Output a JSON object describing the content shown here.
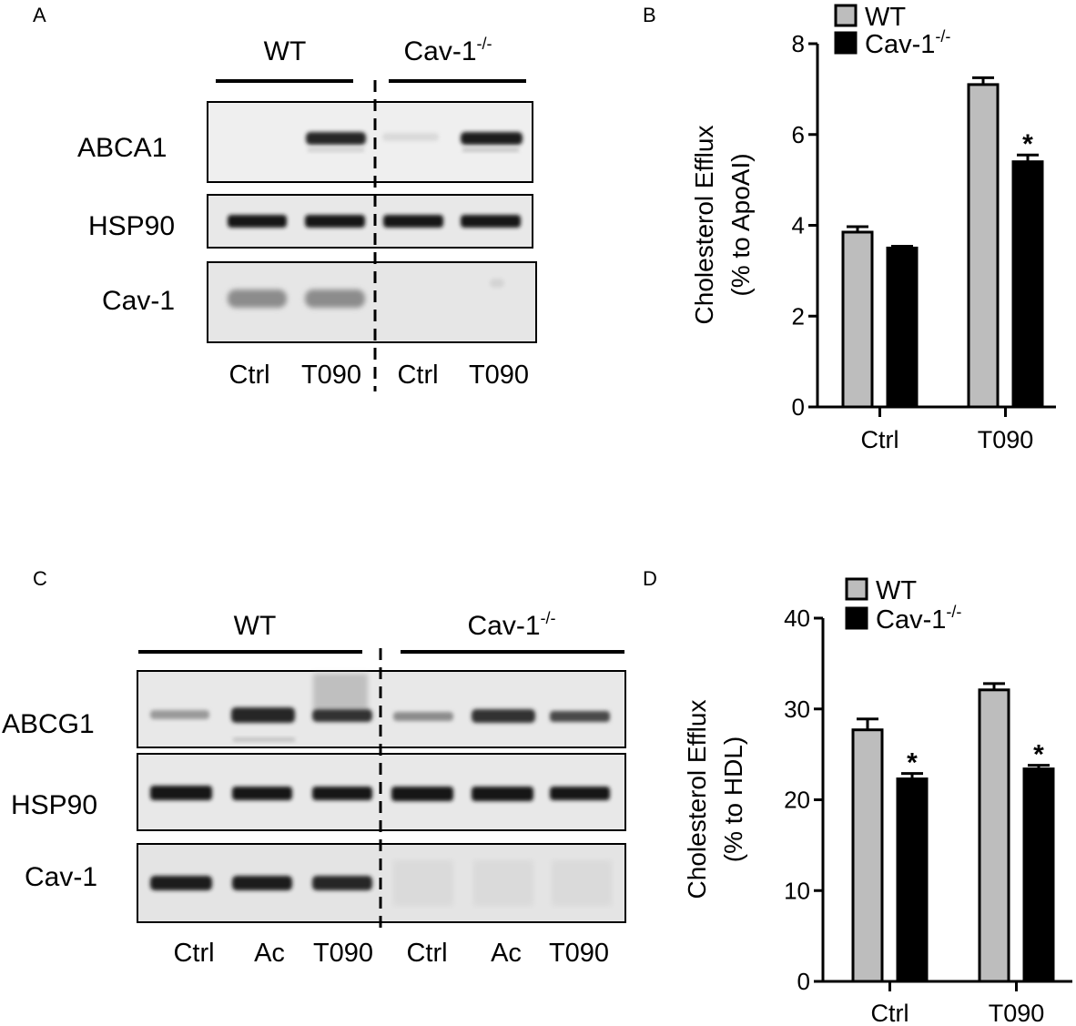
{
  "panels": {
    "a": {
      "letter": "A",
      "groups": [
        "WT",
        "Cav-1"
      ],
      "group_sup": "-/-",
      "rows": [
        "ABCA1",
        "HSP90",
        "Cav-1"
      ],
      "lanes": [
        "Ctrl",
        "T090",
        "Ctrl",
        "T090"
      ]
    },
    "c": {
      "letter": "C",
      "groups": [
        "WT",
        "Cav-1"
      ],
      "group_sup": "-/-",
      "rows": [
        "ABCG1",
        "HSP90",
        "Cav-1"
      ],
      "lanes": [
        "Ctrl",
        "Ac",
        "T090",
        "Ctrl",
        "Ac",
        "T090"
      ]
    },
    "b": {
      "letter": "B"
    },
    "d": {
      "letter": "D"
    }
  },
  "chart_data": [
    {
      "id": "b",
      "type": "bar",
      "categories": [
        "Ctrl",
        "T090"
      ],
      "series": [
        {
          "name": "WT",
          "name_sup": "",
          "color": "#bdbdbd",
          "values": [
            3.85,
            7.1
          ],
          "errors": [
            0.12,
            0.15
          ]
        },
        {
          "name": "Cav-1",
          "name_sup": "-/-",
          "color": "#000000",
          "values": [
            3.5,
            5.4
          ],
          "errors": [
            0.04,
            0.15
          ]
        }
      ],
      "significance": [
        null,
        "*"
      ],
      "ylabel": [
        "Cholesterol Efflux",
        "(% to ApoAI)"
      ],
      "ylim": [
        0,
        8
      ],
      "yticks": [
        "0",
        "2",
        "4",
        "6",
        "8"
      ],
      "legend": "top-left"
    },
    {
      "id": "d",
      "type": "bar",
      "categories": [
        "Ctrl",
        "T090"
      ],
      "series": [
        {
          "name": "WT",
          "name_sup": "",
          "color": "#bdbdbd",
          "values": [
            27.7,
            32.1
          ],
          "errors": [
            1.2,
            0.7
          ]
        },
        {
          "name": "Cav-1",
          "name_sup": "-/-",
          "color": "#000000",
          "values": [
            22.3,
            23.4
          ],
          "errors": [
            0.6,
            0.4
          ]
        }
      ],
      "significance": [
        "*",
        "*"
      ],
      "ylabel": [
        "Cholesterol Efflux",
        "(% to HDL)"
      ],
      "ylim": [
        0,
        40
      ],
      "yticks": [
        "0",
        "10",
        "20",
        "30",
        "40"
      ],
      "legend": "top-left"
    }
  ]
}
